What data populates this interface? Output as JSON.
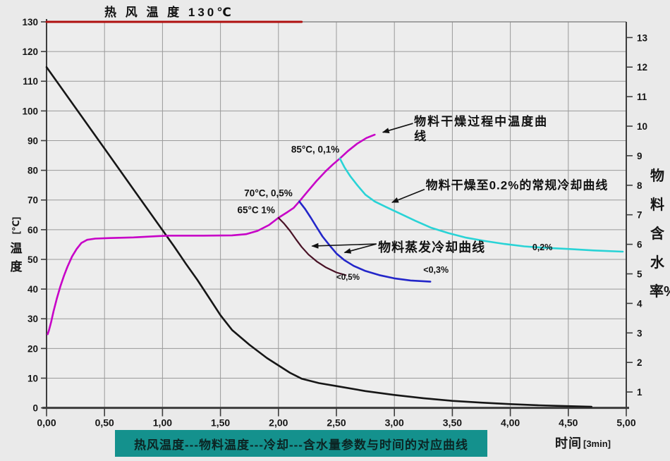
{
  "caption": {
    "text": "热风温度---物料温度---冷却---含水量参数与时间的对应曲线",
    "bg_color": "#14918d",
    "text_color": "#0c2423"
  },
  "colors": {
    "background": "#eaeaea",
    "plot_background": "#ededed",
    "grid": "#9a9a9a",
    "axis": "#3d3d3d",
    "arrow": "#111111"
  },
  "chart_data": {
    "type": "line",
    "title": "热 风 温 度 130℃",
    "x_axis": {
      "label": "时间",
      "unit": "[3min]",
      "min": 0,
      "max": 5,
      "tick_step": 0.5,
      "tick_labels": [
        "0,00",
        "0,50",
        "1,00",
        "1,50",
        "2,00",
        "2,50",
        "3,00",
        "3,50",
        "4,00",
        "4,50",
        "5,00"
      ]
    },
    "y_left": {
      "label": "温度",
      "unit": "[℃]",
      "min": 0,
      "max": 130,
      "ticks": [
        0,
        10,
        20,
        30,
        40,
        50,
        60,
        70,
        80,
        90,
        100,
        110,
        120,
        130
      ]
    },
    "y_right": {
      "label": "物料含水率%",
      "ticks": [
        1,
        2,
        3,
        4,
        5,
        6,
        7,
        8,
        9,
        10,
        11,
        12,
        13
      ]
    },
    "grid": true,
    "series": [
      {
        "id": "moisture",
        "name": "物料含水率",
        "axis": "moisture",
        "color": "#161616",
        "width": 2.6,
        "points": [
          [
            0,
            12.0
          ],
          [
            0.25,
            10.62
          ],
          [
            0.5,
            9.24
          ],
          [
            0.75,
            7.86
          ],
          [
            1.0,
            6.48
          ],
          [
            1.1,
            5.93
          ],
          [
            1.2,
            5.35
          ],
          [
            1.3,
            4.8
          ],
          [
            1.4,
            4.2
          ],
          [
            1.5,
            3.6
          ],
          [
            1.6,
            3.1
          ],
          [
            1.75,
            2.6
          ],
          [
            1.9,
            2.15
          ],
          [
            2.0,
            1.9
          ],
          [
            2.1,
            1.65
          ],
          [
            2.2,
            1.45
          ],
          [
            2.35,
            1.3
          ],
          [
            2.5,
            1.2
          ],
          [
            2.75,
            1.03
          ],
          [
            3.0,
            0.9
          ],
          [
            3.25,
            0.79
          ],
          [
            3.5,
            0.7
          ],
          [
            3.75,
            0.64
          ],
          [
            4.0,
            0.59
          ],
          [
            4.25,
            0.55
          ],
          [
            4.5,
            0.52
          ],
          [
            4.7,
            0.5
          ]
        ]
      },
      {
        "id": "material-temp",
        "name": "物料干燥过程中温度曲线",
        "axis": "temp",
        "color": "#c701c7",
        "width": 2.6,
        "points": [
          [
            0.01,
            24.8
          ],
          [
            0.02,
            26
          ],
          [
            0.04,
            29
          ],
          [
            0.06,
            32.5
          ],
          [
            0.09,
            37
          ],
          [
            0.12,
            41
          ],
          [
            0.15,
            44.5
          ],
          [
            0.18,
            47.5
          ],
          [
            0.22,
            51
          ],
          [
            0.26,
            53.5
          ],
          [
            0.3,
            55.5
          ],
          [
            0.35,
            56.6
          ],
          [
            0.42,
            57
          ],
          [
            0.55,
            57.2
          ],
          [
            0.75,
            57.4
          ],
          [
            0.95,
            57.8
          ],
          [
            1.05,
            58
          ],
          [
            1.35,
            58
          ],
          [
            1.6,
            58.1
          ],
          [
            1.72,
            58.5
          ],
          [
            1.82,
            59.6
          ],
          [
            1.92,
            61.6
          ],
          [
            2.0,
            64
          ],
          [
            2.08,
            66
          ],
          [
            2.13,
            67.3
          ],
          [
            2.18,
            69.5
          ],
          [
            2.25,
            72.8
          ],
          [
            2.33,
            76.5
          ],
          [
            2.41,
            79.8
          ],
          [
            2.47,
            82
          ],
          [
            2.53,
            84
          ],
          [
            2.6,
            86.5
          ],
          [
            2.68,
            89
          ],
          [
            2.76,
            90.9
          ],
          [
            2.83,
            92
          ]
        ]
      },
      {
        "id": "conventional-cooling",
        "name": "物料干燥至0.2%的常规冷却曲线",
        "axis": "temp",
        "color": "#29d3d6",
        "width": 2.6,
        "points": [
          [
            2.53,
            84
          ],
          [
            2.57,
            81
          ],
          [
            2.62,
            78
          ],
          [
            2.68,
            75
          ],
          [
            2.75,
            71.8
          ],
          [
            2.83,
            69.5
          ],
          [
            2.93,
            67.6
          ],
          [
            3.05,
            65.4
          ],
          [
            3.18,
            63
          ],
          [
            3.32,
            60.6
          ],
          [
            3.47,
            58.8
          ],
          [
            3.62,
            57.3
          ],
          [
            3.78,
            56.2
          ],
          [
            3.95,
            55.2
          ],
          [
            4.12,
            54.4
          ],
          [
            4.3,
            53.9
          ],
          [
            4.5,
            53.5
          ],
          [
            4.72,
            53
          ],
          [
            4.97,
            52.6
          ]
        ]
      },
      {
        "id": "evap-cooling-blue",
        "name": "物料蒸发冷却曲线 (<0,3%)",
        "axis": "temp",
        "color": "#2326c9",
        "width": 2.6,
        "points": [
          [
            2.18,
            69.5
          ],
          [
            2.23,
            67
          ],
          [
            2.28,
            64
          ],
          [
            2.33,
            60.8
          ],
          [
            2.38,
            57.7
          ],
          [
            2.44,
            54.8
          ],
          [
            2.5,
            52
          ],
          [
            2.57,
            49.7
          ],
          [
            2.65,
            47.8
          ],
          [
            2.75,
            46.1
          ],
          [
            2.87,
            44.7
          ],
          [
            3.0,
            43.6
          ],
          [
            3.14,
            42.9
          ],
          [
            3.31,
            42.5
          ]
        ]
      },
      {
        "id": "evap-cooling-maroon",
        "name": "物料蒸发冷却曲线 (<0,5%)",
        "axis": "temp",
        "color": "#491226",
        "width": 2.2,
        "points": [
          [
            2.0,
            64
          ],
          [
            2.05,
            62
          ],
          [
            2.1,
            59.6
          ],
          [
            2.15,
            56.8
          ],
          [
            2.2,
            54.2
          ],
          [
            2.26,
            51.6
          ],
          [
            2.33,
            49.3
          ],
          [
            2.41,
            47.3
          ],
          [
            2.5,
            45.6
          ],
          [
            2.58,
            44.7
          ]
        ]
      },
      {
        "id": "hot-air",
        "name": "热风温度 130℃",
        "axis": "temp",
        "color": "#b0100f",
        "width": 3,
        "points": [
          [
            0,
            130
          ],
          [
            2.2,
            130
          ]
        ]
      }
    ],
    "annotations": [
      {
        "id": "point-85c",
        "text": "85°C, 0,1%",
        "x": 2.11,
        "y": 87.0,
        "cls": "mid"
      },
      {
        "id": "point-70c",
        "text": "70°C, 0,5%",
        "x": 1.705,
        "y": 72.3,
        "cls": "mid"
      },
      {
        "id": "point-65c",
        "text": "65°C 1%",
        "x": 1.645,
        "y": 66.6,
        "cls": "mid"
      },
      {
        "id": "drying-temp-curve",
        "text": "物料干燥过程中温度曲线",
        "x": 3.17,
        "y": 98.8,
        "cls": "big wrap",
        "top": true
      },
      {
        "id": "conventional-cooling-label",
        "text": "物料干燥至0.2%的常规冷却曲线",
        "x": 3.27,
        "y": 75.4,
        "cls": "big"
      },
      {
        "id": "evap-cooling-label",
        "text": "物料蒸发冷却曲线",
        "x": 2.86,
        "y": 54.3,
        "cls": "big2"
      },
      {
        "id": "lt-05-label",
        "text": "<0,5%",
        "x": 2.5,
        "y": 43.8,
        "cls": "small"
      },
      {
        "id": "lt-03-label",
        "text": "<0,3%",
        "x": 3.25,
        "y": 46.4,
        "cls": "mid2"
      },
      {
        "id": "pt-02-label",
        "text": "0,2%",
        "x": 4.19,
        "y": 54.0,
        "cls": "mid2"
      }
    ],
    "arrows": [
      {
        "from": [
          3.16,
          95.8
        ],
        "to": [
          2.9,
          92.8
        ]
      },
      {
        "from": [
          3.26,
          73.6
        ],
        "to": [
          2.98,
          69.2
        ]
      },
      {
        "from": [
          2.845,
          55.2
        ],
        "to": [
          2.29,
          54.5
        ]
      },
      {
        "from": [
          2.845,
          55.2
        ],
        "to": [
          2.57,
          52.3
        ]
      }
    ]
  }
}
